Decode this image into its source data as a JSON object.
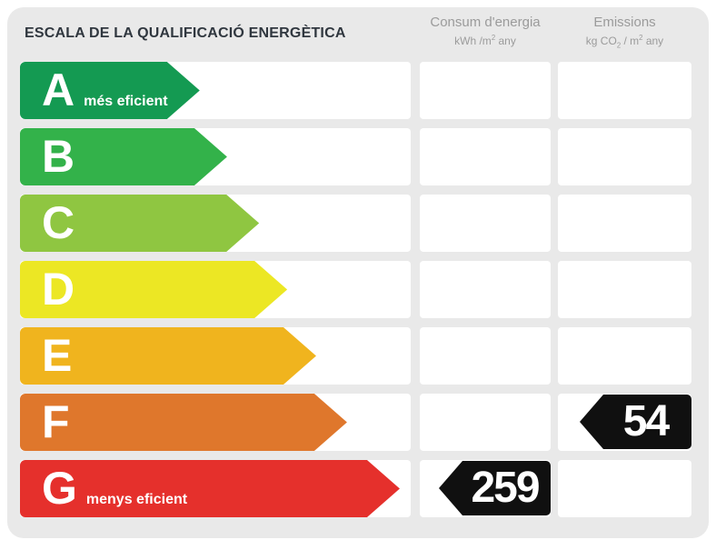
{
  "title": "ESCALA DE LA QUALIFICACIÓ ENERGÈTICA",
  "columns": {
    "consum": {
      "title": "Consum d'energia",
      "unit_pre": "kWh /m",
      "unit_sup": "2",
      "unit_post": " any"
    },
    "emissions": {
      "title": "Emissions",
      "unit_pre": "kg CO",
      "unit_sub": "2",
      "unit_mid": " / m",
      "unit_sup": "2",
      "unit_post": " any"
    }
  },
  "chart_data": {
    "type": "table",
    "title": "Escala de la qualificació energètica",
    "scale": [
      {
        "grade": "A",
        "note": "més eficient",
        "color": "#149a52",
        "width_pct": 46.0
      },
      {
        "grade": "B",
        "note": "",
        "color": "#33b24a",
        "width_pct": 53.0
      },
      {
        "grade": "C",
        "note": "",
        "color": "#8fc641",
        "width_pct": 61.2
      },
      {
        "grade": "D",
        "note": "",
        "color": "#ece724",
        "width_pct": 68.4
      },
      {
        "grade": "E",
        "note": "",
        "color": "#f0b41e",
        "width_pct": 75.8
      },
      {
        "grade": "F",
        "note": "",
        "color": "#df772c",
        "width_pct": 83.7
      },
      {
        "grade": "G",
        "note": "menys eficient",
        "color": "#e5302c",
        "width_pct": 97.2
      }
    ],
    "values": {
      "consum": {
        "value": "259",
        "row": "G"
      },
      "emissions": {
        "value": "54",
        "row": "F"
      }
    },
    "marker_color": "#101010",
    "panel_color": "#e9e9e9"
  }
}
